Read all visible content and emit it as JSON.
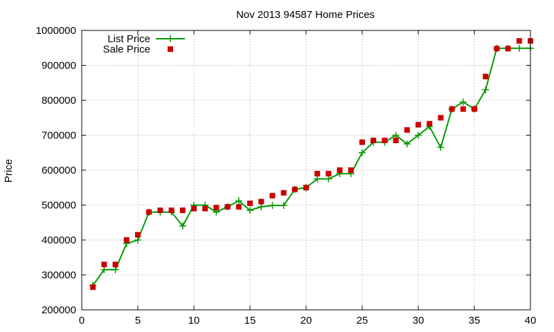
{
  "chart_data": {
    "type": "line",
    "title": "Nov 2013 94587 Home Prices",
    "xlabel": "",
    "ylabel": "Price",
    "xlim": [
      0,
      40
    ],
    "ylim": [
      200000,
      1000000
    ],
    "x_ticks": [
      "0",
      "5",
      "10",
      "15",
      "20",
      "25",
      "30",
      "35",
      "40"
    ],
    "y_ticks": [
      "200000",
      "300000",
      "400000",
      "500000",
      "600000",
      "700000",
      "800000",
      "900000",
      "1000000"
    ],
    "grid": true,
    "legend_position": "top-left",
    "series": [
      {
        "name": "List Price",
        "style": "line-plus",
        "color": "#009900",
        "x": [
          1,
          2,
          3,
          4,
          5,
          6,
          7,
          8,
          9,
          10,
          11,
          12,
          13,
          14,
          15,
          16,
          17,
          18,
          19,
          20,
          21,
          22,
          23,
          24,
          25,
          26,
          27,
          28,
          29,
          30,
          31,
          32,
          33,
          34,
          35,
          36,
          37,
          38,
          39,
          40
        ],
        "y": [
          270000,
          315000,
          315000,
          390000,
          400000,
          480000,
          480000,
          480000,
          440000,
          500000,
          500000,
          480000,
          495000,
          512000,
          485000,
          495000,
          499000,
          499000,
          545000,
          550000,
          575000,
          575000,
          590000,
          590000,
          650000,
          680000,
          680000,
          700000,
          675000,
          700000,
          725000,
          665000,
          775000,
          795000,
          775000,
          830000,
          949000,
          949000,
          949000,
          949000
        ]
      },
      {
        "name": "Sale Price",
        "style": "square-points",
        "color": "#cc0000",
        "x": [
          1,
          2,
          3,
          4,
          5,
          6,
          7,
          8,
          9,
          10,
          11,
          12,
          13,
          14,
          15,
          16,
          17,
          18,
          19,
          20,
          21,
          22,
          23,
          24,
          25,
          26,
          27,
          28,
          29,
          30,
          31,
          32,
          33,
          34,
          35,
          36,
          37,
          38,
          39,
          40
        ],
        "y": [
          265000,
          330000,
          330000,
          400000,
          415000,
          480000,
          485000,
          485000,
          485000,
          490000,
          490000,
          493000,
          495000,
          495000,
          505000,
          510000,
          527000,
          535000,
          545000,
          550000,
          590000,
          590000,
          600000,
          600000,
          680000,
          685000,
          685000,
          685000,
          715000,
          730000,
          733000,
          750000,
          775000,
          775000,
          775000,
          868000,
          948000,
          948000,
          970000,
          970000
        ]
      }
    ]
  }
}
